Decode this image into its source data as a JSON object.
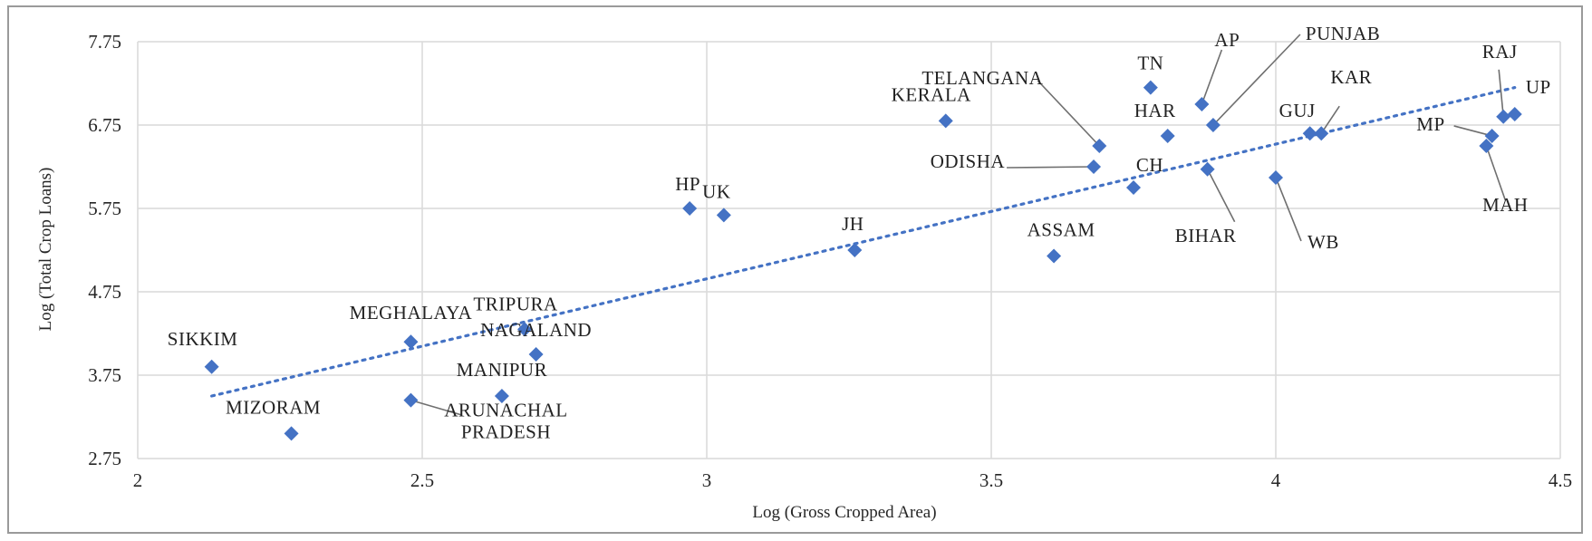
{
  "chart_data": {
    "type": "scatter",
    "xlabel": "Log (Gross Cropped Area)",
    "ylabel": "Log (Total Crop Loans)",
    "xlim": [
      2,
      4.5
    ],
    "ylim": [
      2.75,
      7.75
    ],
    "xticks": [
      "2",
      "2.5",
      "3",
      "3.5",
      "4",
      "4.5"
    ],
    "yticks": [
      "2.75",
      "3.75",
      "4.75",
      "5.75",
      "6.75",
      "7.75"
    ],
    "grid": true,
    "marker_color": "#4472c4",
    "trendline": {
      "style": "dotted",
      "x": [
        2.13,
        4.42
      ],
      "y": [
        3.5,
        7.2
      ]
    },
    "points": [
      {
        "label": "SIKKIM",
        "x": 2.13,
        "y": 3.85
      },
      {
        "label": "MIZORAM",
        "x": 2.27,
        "y": 3.05
      },
      {
        "label": "MEGHALAYA",
        "x": 2.48,
        "y": 4.15
      },
      {
        "label": "ARUNACHAL PRADESH",
        "x": 2.48,
        "y": 3.45
      },
      {
        "label": "TRIPURA",
        "x": 2.68,
        "y": 4.3
      },
      {
        "label": "NAGALAND",
        "x": 2.7,
        "y": 4.0
      },
      {
        "label": "MANIPUR",
        "x": 2.64,
        "y": 3.5
      },
      {
        "label": "HP",
        "x": 2.97,
        "y": 5.75
      },
      {
        "label": "UK",
        "x": 3.03,
        "y": 5.67
      },
      {
        "label": "JH",
        "x": 3.26,
        "y": 5.25
      },
      {
        "label": "KERALA",
        "x": 3.42,
        "y": 6.8
      },
      {
        "label": "ASSAM",
        "x": 3.61,
        "y": 5.18
      },
      {
        "label": "TELANGANA",
        "x": 3.69,
        "y": 6.5
      },
      {
        "label": "ODISHA",
        "x": 3.68,
        "y": 6.25
      },
      {
        "label": "CH",
        "x": 3.75,
        "y": 6.0
      },
      {
        "label": "TN",
        "x": 3.78,
        "y": 7.2
      },
      {
        "label": "HAR",
        "x": 3.81,
        "y": 6.62
      },
      {
        "label": "AP",
        "x": 3.87,
        "y": 7.0
      },
      {
        "label": "PUNJAB",
        "x": 3.89,
        "y": 6.75
      },
      {
        "label": "BIHAR",
        "x": 3.88,
        "y": 6.22
      },
      {
        "label": "WB",
        "x": 4.0,
        "y": 6.12
      },
      {
        "label": "GUJ",
        "x": 4.06,
        "y": 6.65
      },
      {
        "label": "KAR",
        "x": 4.08,
        "y": 6.65
      },
      {
        "label": "MP",
        "x": 4.38,
        "y": 6.62
      },
      {
        "label": "MAH",
        "x": 4.37,
        "y": 6.5
      },
      {
        "label": "RAJ",
        "x": 4.4,
        "y": 6.85
      },
      {
        "label": "UP",
        "x": 4.42,
        "y": 6.88
      }
    ]
  }
}
